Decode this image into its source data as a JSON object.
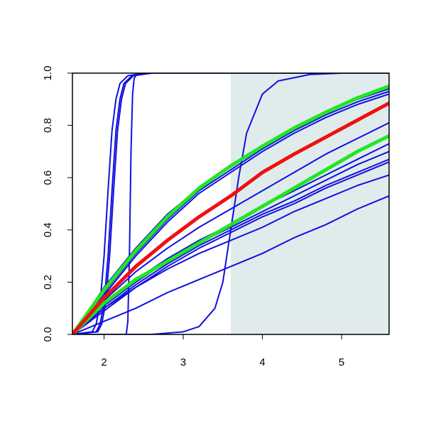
{
  "chart_data": {
    "type": "line",
    "x": [
      1.6,
      2.0,
      2.4,
      2.8,
      3.2,
      3.6,
      4.0,
      4.4,
      4.8,
      5.2,
      5.6
    ],
    "xlim": [
      1.6,
      5.6
    ],
    "ylim": [
      0,
      1
    ],
    "xticks": [
      2,
      3,
      4,
      5
    ],
    "yticks": [
      {
        "value": 0,
        "label": "0.0"
      },
      0.2,
      0.4,
      0.6,
      0.8,
      {
        "value": 1,
        "label": "1.0"
      }
    ],
    "shade": {
      "xrange": [
        3.6,
        5.6
      ],
      "color": "#e0ecec"
    },
    "series": [
      {
        "color": "#1010e0",
        "line_width": 2,
        "values": [
          0,
          0.18,
          0.33,
          0.46,
          0.56,
          0.64,
          0.72,
          0.79,
          0.85,
          0.9,
          0.94
        ]
      },
      {
        "color": "#1010e0",
        "line_width": 2,
        "values": [
          0,
          0.16,
          0.31,
          0.44,
          0.55,
          0.63,
          0.71,
          0.78,
          0.84,
          0.89,
          0.93
        ]
      },
      {
        "color": "#1010e0",
        "line_width": 2,
        "values": [
          0,
          0.15,
          0.3,
          0.43,
          0.54,
          0.62,
          0.7,
          0.77,
          0.83,
          0.88,
          0.92
        ]
      },
      {
        "color": "#1010e0",
        "line_width": 2,
        "values": [
          0,
          0.13,
          0.24,
          0.33,
          0.41,
          0.48,
          0.55,
          0.62,
          0.69,
          0.75,
          0.81
        ]
      },
      {
        "color": "#1010e0",
        "line_width": 2,
        "values": [
          0,
          0.12,
          0.21,
          0.29,
          0.36,
          0.42,
          0.49,
          0.55,
          0.61,
          0.67,
          0.73
        ]
      },
      {
        "color": "#1010e0",
        "line_width": 2,
        "values": [
          0,
          0.11,
          0.2,
          0.28,
          0.35,
          0.41,
          0.47,
          0.53,
          0.59,
          0.65,
          0.7
        ]
      },
      {
        "color": "#1010e0",
        "line_width": 2,
        "values": [
          0,
          0.1,
          0.19,
          0.27,
          0.34,
          0.4,
          0.46,
          0.51,
          0.57,
          0.62,
          0.67
        ]
      },
      {
        "color": "#1010e0",
        "line_width": 2,
        "values": [
          0,
          0.09,
          0.18,
          0.26,
          0.33,
          0.39,
          0.45,
          0.5,
          0.56,
          0.61,
          0.66
        ]
      },
      {
        "color": "#1010e0",
        "line_width": 2,
        "values": [
          0,
          0.1,
          0.18,
          0.25,
          0.31,
          0.36,
          0.41,
          0.47,
          0.52,
          0.57,
          0.61
        ]
      },
      {
        "color": "#1010e0",
        "line_width": 2,
        "values": [
          0,
          0.05,
          0.1,
          0.16,
          0.21,
          0.26,
          0.31,
          0.37,
          0.42,
          0.48,
          0.53
        ]
      },
      {
        "color": "#1010e0",
        "line_width": 2,
        "x": [
          1.6,
          1.85,
          1.9,
          1.95,
          2.0,
          2.05,
          2.1,
          2.15,
          2.2,
          2.3,
          2.5,
          5.6
        ],
        "values": [
          0,
          0.01,
          0.04,
          0.12,
          0.3,
          0.55,
          0.78,
          0.9,
          0.96,
          0.99,
          1,
          1
        ]
      },
      {
        "color": "#1010e0",
        "line_width": 2,
        "x": [
          1.6,
          1.9,
          1.95,
          2.0,
          2.05,
          2.1,
          2.15,
          2.2,
          2.25,
          2.35,
          2.6,
          5.6
        ],
        "values": [
          0,
          0.01,
          0.04,
          0.12,
          0.3,
          0.55,
          0.78,
          0.9,
          0.96,
          0.99,
          1,
          1
        ]
      },
      {
        "color": "#1010e0",
        "line_width": 2,
        "x": [
          1.6,
          1.92,
          1.97,
          2.02,
          2.07,
          2.12,
          2.17,
          2.22,
          2.27,
          2.37,
          2.6,
          5.6
        ],
        "values": [
          0,
          0.01,
          0.04,
          0.12,
          0.3,
          0.55,
          0.78,
          0.9,
          0.96,
          0.99,
          1,
          1
        ]
      },
      {
        "color": "#1010e0",
        "line_width": 2,
        "x": [
          1.6,
          2.28,
          2.3,
          2.32,
          2.34,
          2.36,
          2.38,
          2.42,
          5.6
        ],
        "values": [
          0,
          0,
          0.05,
          0.3,
          0.7,
          0.92,
          0.98,
          1,
          1
        ]
      },
      {
        "color": "#1010e0",
        "line_width": 2,
        "x": [
          1.6,
          2.6,
          3.0,
          3.2,
          3.4,
          3.5,
          3.6,
          3.7,
          3.8,
          4.0,
          4.2,
          4.6,
          5.0,
          5.6
        ],
        "values": [
          0,
          0,
          0.01,
          0.03,
          0.1,
          0.2,
          0.4,
          0.6,
          0.77,
          0.92,
          0.97,
          0.995,
          1,
          1
        ]
      },
      {
        "color": "#22e622",
        "line_width": 5,
        "values": [
          0,
          0.17,
          0.32,
          0.45,
          0.56,
          0.645,
          0.72,
          0.79,
          0.85,
          0.905,
          0.95
        ]
      },
      {
        "color": "#22e622",
        "line_width": 5,
        "values": [
          0,
          0.12,
          0.21,
          0.28,
          0.35,
          0.42,
          0.49,
          0.56,
          0.63,
          0.7,
          0.76
        ]
      },
      {
        "color": "#f01010",
        "line_width": 5,
        "values": [
          0,
          0.14,
          0.26,
          0.36,
          0.45,
          0.53,
          0.62,
          0.69,
          0.755,
          0.82,
          0.885
        ]
      }
    ]
  }
}
